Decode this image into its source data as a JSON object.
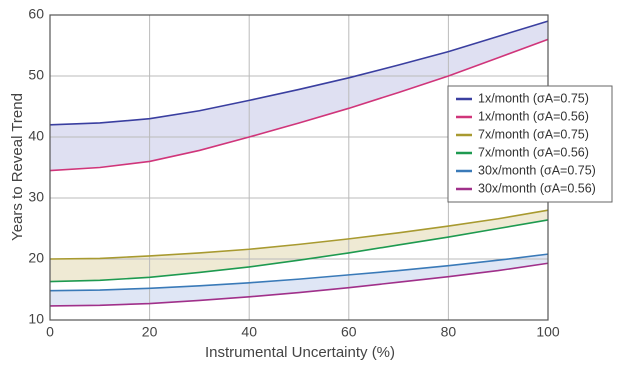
{
  "chart_data": {
    "type": "line",
    "x": [
      0,
      10,
      20,
      30,
      40,
      50,
      60,
      70,
      80,
      90,
      100
    ],
    "series": [
      {
        "name": "1x/month (σA=0.75)",
        "color": "#3a3fa0",
        "values": [
          42,
          42.3,
          43,
          44.3,
          46,
          47.8,
          49.7,
          51.8,
          54,
          56.5,
          59
        ]
      },
      {
        "name": "1x/month (σA=0.56)",
        "color": "#d0357a",
        "values": [
          34.5,
          35,
          36,
          37.8,
          40,
          42.3,
          44.7,
          47.3,
          50,
          53,
          56
        ]
      },
      {
        "name": "7x/month (σA=0.75)",
        "color": "#a89a30",
        "values": [
          20,
          20.1,
          20.5,
          21,
          21.6,
          22.4,
          23.3,
          24.3,
          25.4,
          26.6,
          28
        ]
      },
      {
        "name": "7x/month (σA=0.56)",
        "color": "#1e9a50",
        "values": [
          16.3,
          16.5,
          17,
          17.8,
          18.7,
          19.8,
          21,
          22.3,
          23.6,
          25,
          26.4
        ]
      },
      {
        "name": "30x/month (σA=0.75)",
        "color": "#3a7ab8",
        "values": [
          14.8,
          14.9,
          15.2,
          15.6,
          16.1,
          16.7,
          17.4,
          18.1,
          18.9,
          19.8,
          20.8
        ]
      },
      {
        "name": "30x/month (σA=0.56)",
        "color": "#a0308a",
        "values": [
          12.3,
          12.4,
          12.7,
          13.2,
          13.8,
          14.5,
          15.3,
          16.2,
          17.1,
          18.1,
          19.3
        ]
      }
    ],
    "bands": [
      {
        "series": [
          0,
          1
        ],
        "color": "#d9dbf0"
      },
      {
        "series": [
          2,
          3
        ],
        "color": "#ece6cc"
      },
      {
        "series": [
          4,
          5
        ],
        "color": "#d9e2f3"
      }
    ],
    "xlabel": "Instrumental Uncertainty (%)",
    "ylabel": "Years to Reveal Trend",
    "xlim": [
      0,
      100
    ],
    "xticks": [
      0,
      20,
      40,
      60,
      80,
      100
    ],
    "ylim": [
      10,
      60
    ],
    "yticks": [
      10,
      20,
      30,
      40,
      50,
      60
    ],
    "grid": true,
    "legend": "right"
  }
}
